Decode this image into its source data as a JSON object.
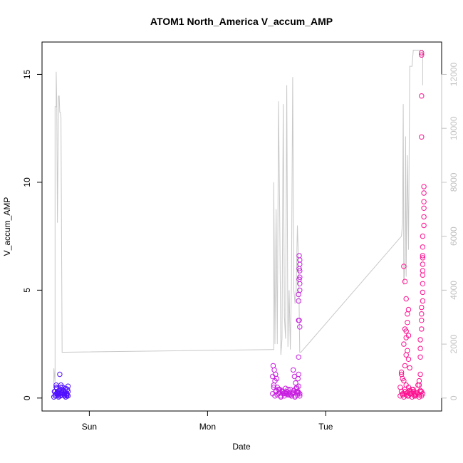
{
  "chart_data": {
    "type": "scatter",
    "title": "ATOM1 North_America V_accum_AMP",
    "xlabel": "Date",
    "ylabel": "V_accum_AMP",
    "x_ticks": [
      {
        "label": "Sun",
        "value": 1.0
      },
      {
        "label": "Mon",
        "value": 2.0
      },
      {
        "label": "Tue",
        "value": 3.0
      }
    ],
    "xlim": [
      0.6,
      3.98
    ],
    "ylim": [
      -0.6,
      16.5
    ],
    "y_ticks": [
      0,
      5,
      10,
      15
    ],
    "y2_ticks": [
      0,
      2000,
      4000,
      6000,
      8000,
      10000,
      12000
    ],
    "y2lim": [
      -480,
      13200
    ],
    "y2_color": "#c0c0c0",
    "grid": false,
    "legend": "none",
    "series": [
      {
        "kind": "line",
        "axis": "right",
        "color": "#c8c8c8",
        "x": [
          0.7,
          0.7,
          0.71,
          0.71,
          0.72,
          0.72,
          0.725,
          0.73,
          0.74,
          0.745,
          0.75,
          0.755,
          0.76,
          0.77,
          0.775,
          0.78,
          0.79,
          2.55,
          2.56,
          2.56,
          2.57,
          2.58,
          2.59,
          2.6,
          2.61,
          2.62,
          2.63,
          2.64,
          2.65,
          2.66,
          2.67,
          2.68,
          2.69,
          2.7,
          2.71,
          2.72,
          2.73,
          2.74,
          2.75,
          2.76,
          2.77,
          2.78,
          2.79,
          3.64,
          3.65,
          3.655,
          3.66,
          3.67,
          3.675,
          3.68,
          3.69,
          3.7,
          3.71,
          3.72,
          3.73,
          3.74,
          3.76,
          3.78,
          3.8,
          3.82,
          3.82
        ],
        "y": [
          400,
          1100,
          600,
          10800,
          10800,
          12100,
          11000,
          6500,
          11200,
          11200,
          10600,
          10600,
          10400,
          1700,
          1700,
          1700,
          1700,
          1800,
          1800,
          8000,
          2000,
          7000,
          2000,
          11000,
          7000,
          1600,
          2200,
          10900,
          3000,
          2200,
          11600,
          1900,
          4000,
          1800,
          4200,
          11900,
          4000,
          3500,
          4000,
          6400,
          5000,
          1700,
          1700,
          6000,
          6500,
          10900,
          4200,
          5000,
          9700,
          4500,
          9000,
          5500,
          12300,
          12300,
          12300,
          12900,
          12900,
          12900,
          12900,
          12900,
          11600
        ]
      },
      {
        "kind": "points",
        "axis": "left",
        "group": "Sun",
        "color": "#5010ff",
        "x": [
          0.71,
          0.72,
          0.73,
          0.74,
          0.75,
          0.76,
          0.77,
          0.78,
          0.79,
          0.8,
          0.81,
          0.82,
          0.72,
          0.74,
          0.76,
          0.78,
          0.8,
          0.82,
          0.71,
          0.73,
          0.75,
          0.77,
          0.79,
          0.81,
          0.7,
          0.705,
          0.715,
          0.725,
          0.735,
          0.745,
          0.755,
          0.765,
          0.775,
          0.785,
          0.795,
          0.805,
          0.815,
          0.72,
          0.75,
          0.78,
          0.81,
          0.73,
          0.76,
          0.79,
          0.82
        ],
        "y": [
          0.1,
          0.2,
          0.3,
          0.05,
          0.4,
          0.15,
          0.25,
          0.35,
          0.1,
          0.45,
          0.2,
          0.3,
          0.5,
          0.1,
          0.6,
          0.2,
          0.05,
          0.55,
          0.3,
          0.15,
          0.2,
          0.4,
          0.25,
          0.1,
          0.05,
          0.3,
          0.15,
          0.45,
          0.2,
          0.35,
          0.1,
          0.25,
          0.5,
          0.15,
          0.3,
          0.2,
          0.4,
          0.6,
          1.1,
          0.35,
          0.15,
          0.25,
          0.5,
          0.2,
          0.1
        ]
      },
      {
        "kind": "points",
        "axis": "left",
        "group": "Mon",
        "color": "#c81ee0",
        "x": [
          2.55,
          2.56,
          2.57,
          2.58,
          2.59,
          2.6,
          2.61,
          2.62,
          2.63,
          2.64,
          2.65,
          2.66,
          2.67,
          2.68,
          2.69,
          2.7,
          2.71,
          2.72,
          2.73,
          2.74,
          2.75,
          2.76,
          2.77,
          2.78,
          2.56,
          2.58,
          2.6,
          2.62,
          2.64,
          2.66,
          2.68,
          2.7,
          2.72,
          2.74,
          2.76,
          2.78,
          2.55,
          2.57,
          2.59,
          2.61,
          2.63,
          2.65,
          2.67,
          2.69,
          2.71,
          2.73,
          2.75,
          2.77,
          2.555,
          2.565,
          2.575,
          2.585,
          2.725,
          2.735,
          2.745,
          2.755,
          2.77,
          2.775,
          2.78,
          2.78,
          2.78,
          2.78,
          2.78,
          2.78,
          2.78,
          2.775,
          2.775,
          2.775,
          2.77,
          2.77,
          2.77,
          2.77,
          2.765,
          2.765
        ],
        "y": [
          0.2,
          0.5,
          0.1,
          0.3,
          0.15,
          0.4,
          0.25,
          0.05,
          0.35,
          0.2,
          0.1,
          0.45,
          0.3,
          0.15,
          0.25,
          0.4,
          0.1,
          0.2,
          0.35,
          0.05,
          0.3,
          0.15,
          0.25,
          0.1,
          0.6,
          0.35,
          0.2,
          0.1,
          0.3,
          0.2,
          0.4,
          0.15,
          0.25,
          0.1,
          0.3,
          0.2,
          1.0,
          0.8,
          0.5,
          0.4,
          0.3,
          0.25,
          0.2,
          0.15,
          0.1,
          0.35,
          0.45,
          0.55,
          1.5,
          1.3,
          1.1,
          0.9,
          1.3,
          1.0,
          0.7,
          0.5,
          1.1,
          3.6,
          3.3,
          5.0,
          5.3,
          5.6,
          5.9,
          6.2,
          6.4,
          6.6,
          6.0,
          5.5,
          4.8,
          4.5,
          1.9,
          3.6,
          0.9,
          0.3
        ]
      },
      {
        "kind": "points",
        "axis": "left",
        "group": "Tue",
        "color": "#ff1090",
        "x": [
          3.63,
          3.64,
          3.65,
          3.66,
          3.67,
          3.68,
          3.69,
          3.7,
          3.71,
          3.72,
          3.73,
          3.74,
          3.75,
          3.76,
          3.77,
          3.78,
          3.79,
          3.8,
          3.81,
          3.82,
          3.63,
          3.65,
          3.67,
          3.69,
          3.71,
          3.73,
          3.75,
          3.77,
          3.79,
          3.81,
          3.64,
          3.66,
          3.68,
          3.7,
          3.72,
          3.74,
          3.76,
          3.78,
          3.8,
          3.82,
          3.64,
          3.65,
          3.66,
          3.67,
          3.68,
          3.68,
          3.69,
          3.69,
          3.7,
          3.7,
          3.66,
          3.67,
          3.67,
          3.68,
          3.68,
          3.69,
          3.7,
          3.71,
          3.79,
          3.8,
          3.8,
          3.81,
          3.81,
          3.81,
          3.81,
          3.82,
          3.82,
          3.82,
          3.82,
          3.82,
          3.82,
          3.82,
          3.82,
          3.83,
          3.83,
          3.83,
          3.83,
          3.83,
          3.83,
          3.81,
          3.81,
          3.81,
          3.81,
          3.82,
          3.82,
          3.8,
          3.8,
          3.79
        ],
        "y": [
          0.1,
          0.3,
          0.2,
          0.05,
          0.4,
          0.15,
          0.25,
          0.1,
          0.35,
          0.2,
          0.05,
          0.3,
          0.15,
          0.1,
          0.25,
          0.2,
          0.05,
          0.35,
          0.1,
          0.2,
          0.5,
          0.15,
          0.3,
          0.1,
          0.2,
          0.4,
          0.1,
          0.25,
          0.15,
          0.3,
          1.2,
          0.8,
          0.6,
          0.5,
          0.3,
          0.4,
          0.2,
          0.6,
          0.3,
          0.2,
          1.1,
          0.9,
          2.5,
          1.5,
          2.8,
          3.1,
          2.2,
          3.5,
          1.8,
          4.1,
          6.1,
          3.2,
          5.4,
          4.6,
          2.0,
          3.9,
          2.9,
          1.4,
          0.8,
          1.9,
          2.7,
          3.2,
          3.6,
          3.9,
          4.2,
          4.5,
          4.9,
          5.3,
          5.7,
          6.2,
          6.6,
          7.0,
          7.5,
          8.0,
          8.4,
          8.8,
          9.1,
          9.5,
          9.8,
          12.1,
          14.0,
          15.9,
          16.0,
          5.9,
          6.5,
          2.3,
          1.1,
          0.6
        ]
      }
    ]
  }
}
